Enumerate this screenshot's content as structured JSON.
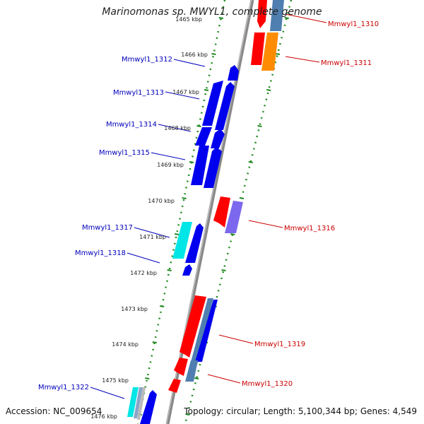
{
  "title": "Marinomonas sp. MWYL1, complete genome",
  "footer": {
    "accession": "Accession: NC_009654",
    "summary": "Topology: circular; Length: 5,100,344 bp; Genes: 4,549"
  },
  "colors": {
    "forward_label": "#0000bb",
    "reverse_label": "#cc0000",
    "backbone": "#8a8a8a",
    "tick_ring": "#228b22"
  },
  "ticks": [
    "1465 kbp",
    "1466 kbp",
    "1467 kbp",
    "1468 kbp",
    "1469 kbp",
    "1470 kbp",
    "1471 kbp",
    "1472 kbp",
    "1473 kbp",
    "1474 kbp",
    "1475 kbp",
    "1476 kbp"
  ],
  "genes": [
    {
      "id": "Mmwyl1_1310",
      "strand": "reverse"
    },
    {
      "id": "Mmwyl1_1311",
      "strand": "reverse"
    },
    {
      "id": "Mmwyl1_1312",
      "strand": "forward"
    },
    {
      "id": "Mmwyl1_1313",
      "strand": "forward"
    },
    {
      "id": "Mmwyl1_1314",
      "strand": "forward"
    },
    {
      "id": "Mmwyl1_1315",
      "strand": "forward"
    },
    {
      "id": "Mmwyl1_1316",
      "strand": "reverse"
    },
    {
      "id": "Mmwyl1_1317",
      "strand": "forward"
    },
    {
      "id": "Mmwyl1_1318",
      "strand": "forward"
    },
    {
      "id": "Mmwyl1_1319",
      "strand": "reverse"
    },
    {
      "id": "Mmwyl1_1320",
      "strand": "reverse"
    },
    {
      "id": "Mmwyl1_1322",
      "strand": "forward"
    }
  ]
}
